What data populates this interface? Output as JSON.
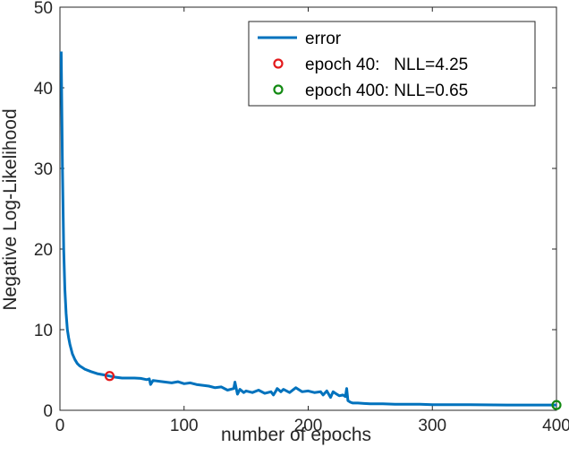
{
  "chart_data": {
    "type": "line",
    "xlabel": "number of epochs",
    "ylabel": "Negative Log-Likelihood",
    "xlim": [
      0,
      400
    ],
    "ylim": [
      0,
      50
    ],
    "xticks": [
      "0",
      "100",
      "200",
      "300",
      "400"
    ],
    "yticks": [
      "0",
      "10",
      "20",
      "30",
      "40",
      "50"
    ],
    "grid": false,
    "legend_position": "top-right",
    "series": [
      {
        "name": "error",
        "color": "#0072bd",
        "x": [
          1,
          2,
          3,
          4,
          5,
          6,
          7,
          8,
          10,
          12,
          14,
          16,
          18,
          20,
          25,
          30,
          35,
          40,
          45,
          50,
          55,
          60,
          65,
          70,
          72,
          73,
          75,
          80,
          85,
          90,
          95,
          100,
          105,
          110,
          115,
          120,
          125,
          130,
          135,
          140,
          141,
          143,
          145,
          148,
          150,
          155,
          160,
          165,
          170,
          172,
          174,
          175,
          178,
          180,
          185,
          190,
          195,
          200,
          205,
          210,
          212,
          215,
          218,
          220,
          222,
          225,
          228,
          230,
          231,
          232,
          234,
          236,
          240,
          245,
          250,
          260,
          270,
          280,
          290,
          300,
          310,
          320,
          330,
          340,
          350,
          360,
          370,
          380,
          390,
          400
        ],
        "values": [
          44.5,
          30,
          20,
          15,
          12,
          10,
          9,
          8.2,
          7,
          6.3,
          5.8,
          5.5,
          5.3,
          5.1,
          4.8,
          4.55,
          4.4,
          4.25,
          4.1,
          4.0,
          4.0,
          4.0,
          3.95,
          3.8,
          3.9,
          3.2,
          3.7,
          3.6,
          3.5,
          3.4,
          3.55,
          3.3,
          3.4,
          3.2,
          3.1,
          3.0,
          2.8,
          2.9,
          2.5,
          2.7,
          3.5,
          2.0,
          2.6,
          2.2,
          2.4,
          2.2,
          2.5,
          2.1,
          2.3,
          1.9,
          2.4,
          2.7,
          2.3,
          2.6,
          2.2,
          2.8,
          2.3,
          2.4,
          2.2,
          2.3,
          1.9,
          2.4,
          1.6,
          2.3,
          2.1,
          1.8,
          1.9,
          1.7,
          2.7,
          1.2,
          1.0,
          0.9,
          0.9,
          0.85,
          0.8,
          0.8,
          0.75,
          0.75,
          0.75,
          0.7,
          0.7,
          0.7,
          0.7,
          0.68,
          0.67,
          0.66,
          0.65,
          0.66,
          0.65,
          0.65
        ]
      }
    ],
    "markers": [
      {
        "label": "epoch 40:   NLL=4.25",
        "x": 40,
        "y": 4.25,
        "color": "#e31a1c"
      },
      {
        "label": "epoch 400: NLL=0.65",
        "x": 400,
        "y": 0.65,
        "color": "#138a13"
      }
    ]
  }
}
